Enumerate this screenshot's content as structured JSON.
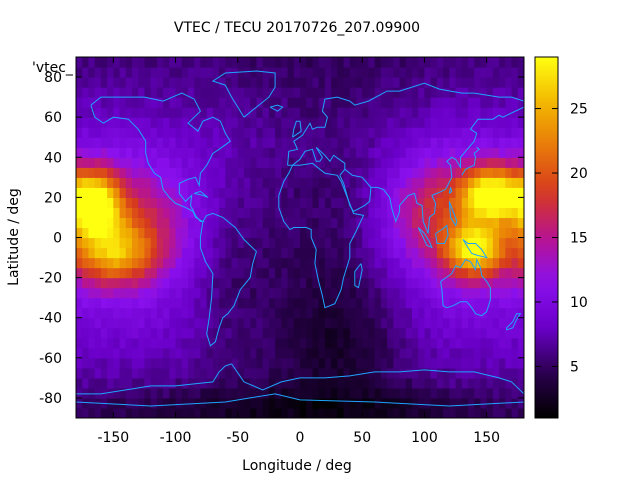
{
  "chart_data": {
    "type": "heatmap",
    "title": "VTEC / TECU 20170726_207.09900",
    "xlabel": "Longitude / deg",
    "ylabel": "Latitude / deg",
    "legend_label": "'vtec_",
    "xlim": [
      -180,
      180
    ],
    "ylim": [
      -90,
      90
    ],
    "xticks": [
      "-150",
      "-100",
      "-50",
      "0",
      "50",
      "100",
      "150"
    ],
    "yticks": [
      "80",
      "60",
      "40",
      "20",
      "0",
      "-20",
      "-40",
      "-60",
      "-80"
    ],
    "colorbar": {
      "range": [
        1,
        29
      ],
      "ticks": [
        "5",
        "10",
        "15",
        "20",
        "25"
      ],
      "colormap": [
        "#000000",
        "#2a004e",
        "#6a00c8",
        "#8a10ee",
        "#b8148f",
        "#d63a1e",
        "#e8780a",
        "#f2b800",
        "#ffff10"
      ]
    },
    "grid": false,
    "coastline_color": "#1ea4ff",
    "field_model": {
      "background_tecu": 8.5,
      "features": [
        {
          "name": "equatorial-anomaly-pacific-north",
          "lon": -160,
          "lat": 18,
          "peak_tecu": 27
        },
        {
          "name": "equatorial-anomaly-pacific-south",
          "lon": -160,
          "lat": -10,
          "peak_tecu": 20
        },
        {
          "name": "equatorial-anomaly-west-pacific-north",
          "lon": 150,
          "lat": 22,
          "peak_tecu": 27
        },
        {
          "name": "equatorial-anomaly-west-pacific-south",
          "lon": 140,
          "lat": -5,
          "peak_tecu": 23
        },
        {
          "name": "low-atlantic-africa",
          "lon": 10,
          "lat": 5,
          "peak_tecu": 3
        },
        {
          "name": "low-southern-indian",
          "lon": 40,
          "lat": -45,
          "peak_tecu": 2
        },
        {
          "name": "low-antarctic",
          "lon": 0,
          "lat": -85,
          "peak_tecu": 1.5
        }
      ]
    }
  }
}
